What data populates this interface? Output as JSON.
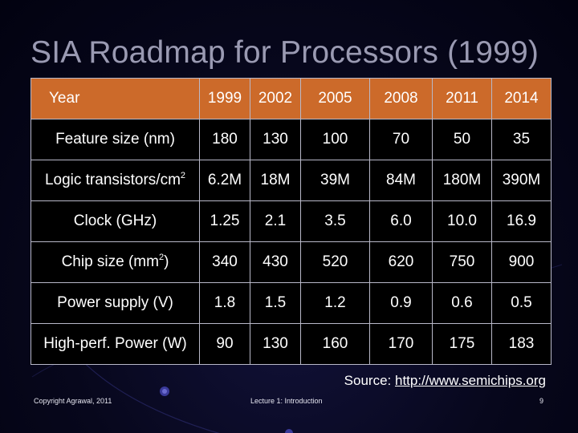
{
  "title": "SIA Roadmap for Processors (1999)",
  "table": {
    "header": {
      "label": "Year",
      "years": [
        "1999",
        "2002",
        "2005",
        "2008",
        "2011",
        "2014"
      ]
    },
    "rows": [
      {
        "label": "Feature size (nm)",
        "values": [
          "180",
          "130",
          "100",
          "70",
          "50",
          "35"
        ]
      },
      {
        "label": "Logic transistors/cm",
        "label_sup": "2",
        "label_after": "",
        "values": [
          "6.2M",
          "18M",
          "39M",
          "84M",
          "180M",
          "390M"
        ]
      },
      {
        "label": "Clock (GHz)",
        "values": [
          "1.25",
          "2.1",
          "3.5",
          "6.0",
          "10.0",
          "16.9"
        ]
      },
      {
        "label": "Chip size (mm",
        "label_sup": "2",
        "label_after": ")",
        "values": [
          "340",
          "430",
          "520",
          "620",
          "750",
          "900"
        ]
      },
      {
        "label": "Power supply (V)",
        "values": [
          "1.8",
          "1.5",
          "1.2",
          "0.9",
          "0.6",
          "0.5"
        ]
      },
      {
        "label": "High-perf. Power (W)",
        "values": [
          "90",
          "130",
          "160",
          "170",
          "175",
          "183"
        ]
      }
    ]
  },
  "source": {
    "prefix": "Source: ",
    "link": "http://www.semichips.org"
  },
  "footer": {
    "left": "Copyright Agrawal, 2011",
    "center": "Lecture 1: Introduction",
    "page": "9"
  },
  "colors": {
    "header_bg": "#cc6a2a",
    "cell_bg": "#000000",
    "title": "#9a9ab2",
    "background": "#07071c"
  }
}
